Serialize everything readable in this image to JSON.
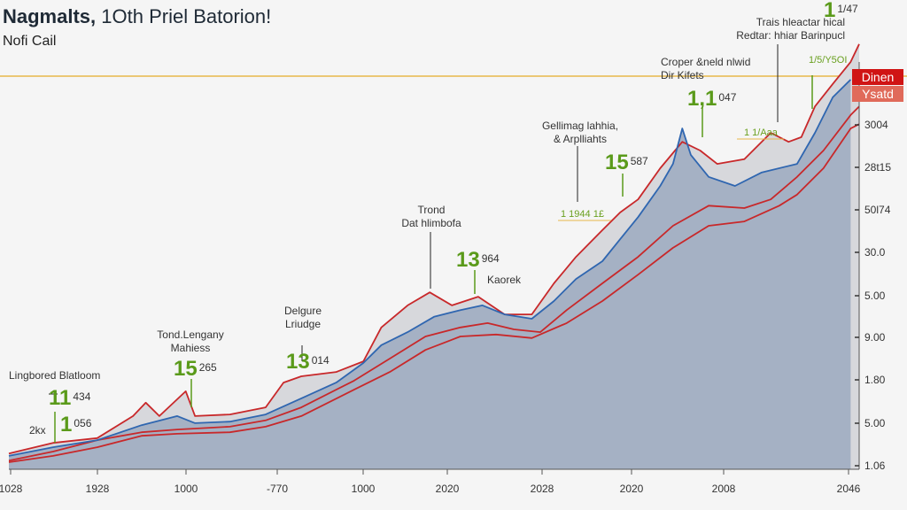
{
  "header": {
    "title_bold": "Nagmalts,",
    "title_rest": " 1Oth Priel Batorion!",
    "subtitle": "Nofi Cail"
  },
  "annotations": {
    "a1": "Lingbored Blatloom",
    "a1_num": "11",
    "a1_sup": "434",
    "a2_label": "2kx",
    "a2_num": "1",
    "a2_sup": "056",
    "a3_line1": "Tond.Lengany",
    "a3_line2": "Mahiess",
    "a3_num": "15",
    "a3_sup": "265",
    "a4_line1": "Delgure",
    "a4_line2": "Lriudge",
    "a4_num": "13",
    "a4_sup": "014",
    "a5_line1": "Trond",
    "a5_line2": "Dat hlimbofa",
    "a5_num": "13",
    "a5_sup": "964",
    "a5_note": "Kaorek",
    "a6_line1": "Gellimag lahhia,",
    "a6_line2": "& Arplliahts",
    "a6_small": "1 1944 1£",
    "a6_num": "15",
    "a6_sup": "587",
    "a7_line1": "Croper &neld nlwid",
    "a7_line2": "Dir Kifets",
    "a7_num": "1,1",
    "a7_sup": "047",
    "a8_line1": "Trais hleactar hical",
    "a8_line2": "Redtar: hhiar Barinpucl",
    "a8_small": "1 1/Aaa",
    "a9_num": "1",
    "a9_sup": "1/47",
    "a9_small": "1/5/Y5OI",
    "tag1": "Dinen",
    "tag2": "Ysatd"
  },
  "colors": {
    "red": "#c8282a",
    "blue": "#2f66b0",
    "slate_fill": "#a5b1c4",
    "gray_fill": "#d7d8dc",
    "green": "#5a9a1a",
    "reference_line": "#e8b84a",
    "tag1": "#d01414",
    "tag2": "#e06a5a"
  },
  "chart_data": {
    "type": "area",
    "title": "Nagmalts, 1Oth Priel Batorion!",
    "subtitle": "Nofi Cail",
    "grid": false,
    "x_tick_labels": [
      "1028",
      "1928",
      "1000",
      "-770",
      "1000",
      "2020",
      "2028",
      "2020",
      "2008",
      "2046"
    ],
    "y_tick_labels": [
      "3004",
      "28t15",
      "50l74",
      "30.0",
      "5.00",
      "9.00",
      "1.80",
      "5.00",
      "1.06"
    ],
    "y_axis_side": "right",
    "xlim": [
      0,
      100
    ],
    "ylim": [
      0,
      110
    ],
    "series": [
      {
        "role": "upper-envelope",
        "color": "#c8282a",
        "points": [
          [
            0,
            4.0
          ],
          [
            5.2,
            6.7
          ],
          [
            10.4,
            7.9
          ],
          [
            14.6,
            13.5
          ],
          [
            16.1,
            16.9
          ],
          [
            17.7,
            13.5
          ],
          [
            20.8,
            19.8
          ],
          [
            21.9,
            13.5
          ],
          [
            26.0,
            13.9
          ],
          [
            30.2,
            15.7
          ],
          [
            32.3,
            22.0
          ],
          [
            34.4,
            23.6
          ],
          [
            38.5,
            24.7
          ],
          [
            41.7,
            27.4
          ],
          [
            43.8,
            36.0
          ],
          [
            46.9,
            41.6
          ],
          [
            49.5,
            44.9
          ],
          [
            52.1,
            41.6
          ],
          [
            55.2,
            43.8
          ],
          [
            58.3,
            39.3
          ],
          [
            61.5,
            39.3
          ],
          [
            64.1,
            47.2
          ],
          [
            66.7,
            53.9
          ],
          [
            69.8,
            60.7
          ],
          [
            71.9,
            65.2
          ],
          [
            74.0,
            68.5
          ],
          [
            76.6,
            76.4
          ],
          [
            79.2,
            83.1
          ],
          [
            81.3,
            80.9
          ],
          [
            83.3,
            77.5
          ],
          [
            86.5,
            78.7
          ],
          [
            89.6,
            85.4
          ],
          [
            91.7,
            83.1
          ],
          [
            93.2,
            84.3
          ],
          [
            94.8,
            92.1
          ],
          [
            96.9,
            97.8
          ],
          [
            99.0,
            103.4
          ],
          [
            100,
            107.9
          ]
        ]
      },
      {
        "role": "main",
        "color": "#2f66b0",
        "points": [
          [
            0,
            3.4
          ],
          [
            5.2,
            5.6
          ],
          [
            10.4,
            7.4
          ],
          [
            15.6,
            11.2
          ],
          [
            19.8,
            13.5
          ],
          [
            21.9,
            11.7
          ],
          [
            26.0,
            12.1
          ],
          [
            30.2,
            13.9
          ],
          [
            34.4,
            18.0
          ],
          [
            38.5,
            22.0
          ],
          [
            41.7,
            27.0
          ],
          [
            43.8,
            31.5
          ],
          [
            46.9,
            34.8
          ],
          [
            50.0,
            38.7
          ],
          [
            53.1,
            40.4
          ],
          [
            55.7,
            41.6
          ],
          [
            58.3,
            39.3
          ],
          [
            61.5,
            38.2
          ],
          [
            64.1,
            42.7
          ],
          [
            66.7,
            48.3
          ],
          [
            69.8,
            52.8
          ],
          [
            71.9,
            58.4
          ],
          [
            74.0,
            64.0
          ],
          [
            76.6,
            71.9
          ],
          [
            78.1,
            77.5
          ],
          [
            79.2,
            86.5
          ],
          [
            80.2,
            79.8
          ],
          [
            82.3,
            74.2
          ],
          [
            85.4,
            71.9
          ],
          [
            88.5,
            75.3
          ],
          [
            92.7,
            77.5
          ],
          [
            94.8,
            85.4
          ],
          [
            96.9,
            94.4
          ],
          [
            99.0,
            98.9
          ]
        ]
      },
      {
        "role": "lower-1",
        "color": "#c8282a",
        "points": [
          [
            0,
            2.2
          ],
          [
            5.2,
            4.5
          ],
          [
            10.4,
            7.4
          ],
          [
            15.6,
            9.4
          ],
          [
            19.8,
            10.1
          ],
          [
            26.0,
            10.8
          ],
          [
            30.2,
            12.4
          ],
          [
            34.4,
            15.7
          ],
          [
            40.6,
            22.5
          ],
          [
            44.8,
            28.1
          ],
          [
            49.0,
            33.7
          ],
          [
            53.1,
            36.0
          ],
          [
            56.3,
            37.1
          ],
          [
            59.4,
            35.5
          ],
          [
            62.5,
            34.8
          ],
          [
            65.6,
            40.4
          ],
          [
            69.8,
            47.2
          ],
          [
            74.0,
            53.9
          ],
          [
            78.1,
            61.8
          ],
          [
            82.3,
            66.9
          ],
          [
            86.5,
            66.3
          ],
          [
            89.6,
            68.5
          ],
          [
            92.7,
            74.2
          ],
          [
            95.8,
            80.9
          ],
          [
            99.0,
            89.9
          ],
          [
            100,
            92.1
          ]
        ]
      },
      {
        "role": "lower-2",
        "color": "#c8282a",
        "points": [
          [
            0,
            1.8
          ],
          [
            5.2,
            3.4
          ],
          [
            10.4,
            5.6
          ],
          [
            15.6,
            8.5
          ],
          [
            19.8,
            9.0
          ],
          [
            26.0,
            9.4
          ],
          [
            30.2,
            10.8
          ],
          [
            34.4,
            13.5
          ],
          [
            40.6,
            20.2
          ],
          [
            44.8,
            24.7
          ],
          [
            49.0,
            30.3
          ],
          [
            53.1,
            33.7
          ],
          [
            57.3,
            34.2
          ],
          [
            61.5,
            33.3
          ],
          [
            65.6,
            37.1
          ],
          [
            69.8,
            42.7
          ],
          [
            74.0,
            49.4
          ],
          [
            78.1,
            56.2
          ],
          [
            82.3,
            61.8
          ],
          [
            86.5,
            62.9
          ],
          [
            90.6,
            66.9
          ],
          [
            92.7,
            69.7
          ],
          [
            95.8,
            76.4
          ],
          [
            99.0,
            86.5
          ],
          [
            100,
            87.6
          ]
        ]
      }
    ]
  }
}
